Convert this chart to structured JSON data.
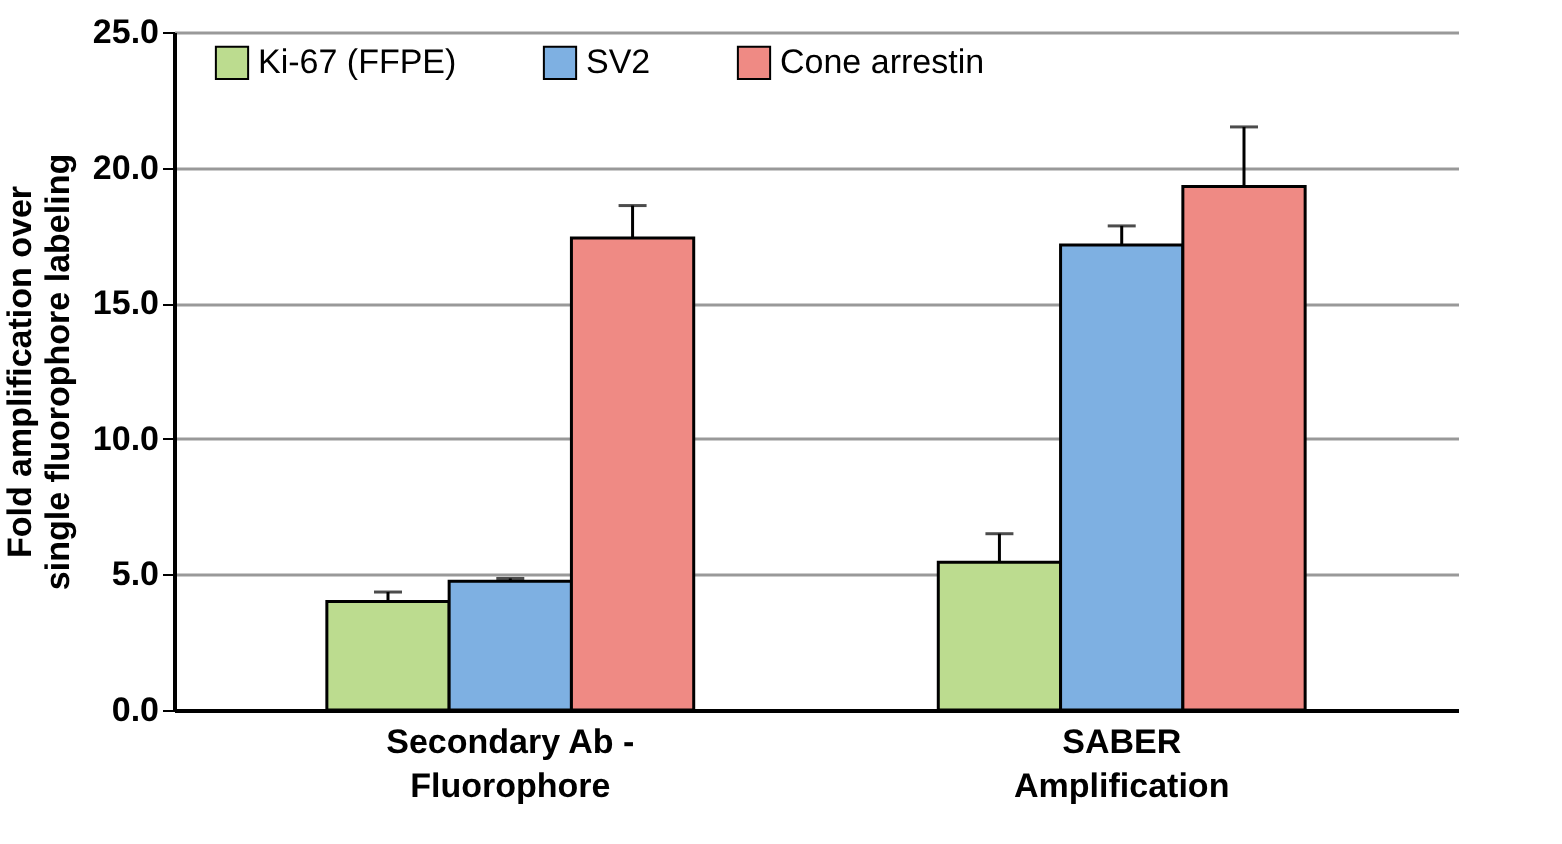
{
  "chart_data": {
    "type": "bar",
    "ylabel": "Fold amplification over\nsingle fluorophore labeling",
    "categories": [
      "Secondary Ab -\nFluorophore",
      "SABER\nAmplification"
    ],
    "series": [
      {
        "name": "Ki-67 (FFPE)",
        "color": "#bcdc8f",
        "values": [
          4.0,
          5.45
        ],
        "errors": [
          [
            4.0,
            4.35
          ],
          [
            5.45,
            6.5
          ]
        ]
      },
      {
        "name": "SV2",
        "color": "#7eb0e2",
        "values": [
          4.75,
          17.15
        ],
        "errors": [
          [
            4.75,
            4.85
          ],
          [
            17.15,
            17.85
          ]
        ]
      },
      {
        "name": "Cone arrestin",
        "color": "#ef8a84",
        "values": [
          17.4,
          19.3
        ],
        "errors": [
          [
            17.4,
            18.6
          ],
          [
            19.3,
            21.5
          ]
        ]
      }
    ],
    "ylim": [
      0,
      25
    ],
    "yticks": [
      {
        "value": 0,
        "label": "0.0"
      },
      {
        "value": 5,
        "label": "5.0"
      },
      {
        "value": 10,
        "label": "10.0"
      },
      {
        "value": 15,
        "label": "15.0"
      },
      {
        "value": 20,
        "label": "20.0"
      },
      {
        "value": 25,
        "label": "25.0"
      }
    ],
    "grid": "y",
    "legend": "top left"
  }
}
